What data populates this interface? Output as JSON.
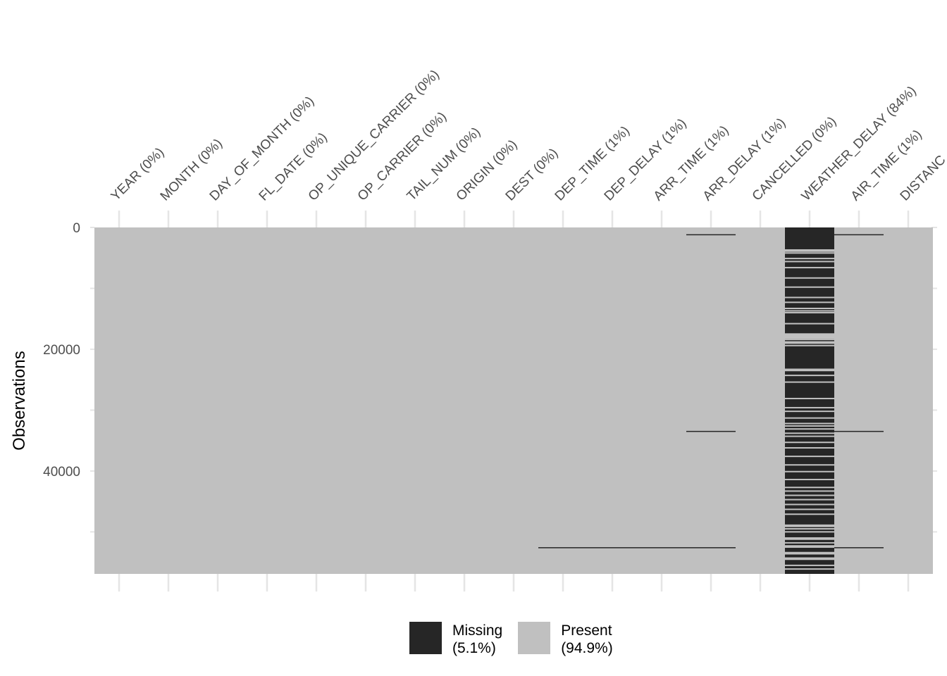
{
  "chart_data": {
    "type": "heatmap",
    "subtype": "missingness-map (vis_miss)",
    "title": "",
    "xlabel": "",
    "ylabel": "Observations",
    "y_ticks": [
      0,
      20000,
      40000
    ],
    "y_minor_ticks": [
      10000,
      30000,
      50000
    ],
    "ylim": [
      0,
      56900
    ],
    "y_reversed": true,
    "grid": true,
    "legend_position": "bottom",
    "colors": {
      "missing": "#262626",
      "present": "#c0c0c0",
      "grid": "#e5e5e5"
    },
    "columns": [
      {
        "name": "YEAR",
        "pct_missing": 0,
        "label": "YEAR (0%)"
      },
      {
        "name": "MONTH",
        "pct_missing": 0,
        "label": "MONTH (0%)"
      },
      {
        "name": "DAY_OF_MONTH",
        "pct_missing": 0,
        "label": "DAY_OF_MONTH (0%)"
      },
      {
        "name": "FL_DATE",
        "pct_missing": 0,
        "label": "FL_DATE (0%)"
      },
      {
        "name": "OP_UNIQUE_CARRIER",
        "pct_missing": 0,
        "label": "OP_UNIQUE_CARRIER (0%)"
      },
      {
        "name": "OP_CARRIER",
        "pct_missing": 0,
        "label": "OP_CARRIER (0%)"
      },
      {
        "name": "TAIL_NUM",
        "pct_missing": 0,
        "label": "TAIL_NUM (0%)"
      },
      {
        "name": "ORIGIN",
        "pct_missing": 0,
        "label": "ORIGIN (0%)"
      },
      {
        "name": "DEST",
        "pct_missing": 0,
        "label": "DEST (0%)"
      },
      {
        "name": "DEP_TIME",
        "pct_missing": 1,
        "label": "DEP_TIME (1%)"
      },
      {
        "name": "DEP_DELAY",
        "pct_missing": 1,
        "label": "DEP_DELAY (1%)"
      },
      {
        "name": "ARR_TIME",
        "pct_missing": 1,
        "label": "ARR_TIME (1%)"
      },
      {
        "name": "ARR_DELAY",
        "pct_missing": 1,
        "label": "ARR_DELAY (1%)"
      },
      {
        "name": "CANCELLED",
        "pct_missing": 0,
        "label": "CANCELLED (0%)"
      },
      {
        "name": "WEATHER_DELAY",
        "pct_missing": 84,
        "label": "WEATHER_DELAY (84%)"
      },
      {
        "name": "AIR_TIME",
        "pct_missing": 1,
        "label": "AIR_TIME (1%)"
      },
      {
        "name": "DISTANCE",
        "pct_missing": null,
        "label": "DISTANC"
      }
    ],
    "missing_row_bands": [
      {
        "row_approx": 1200,
        "columns": [
          "ARR_DELAY",
          "AIR_TIME"
        ]
      },
      {
        "row_approx": 33500,
        "columns": [
          "ARR_DELAY",
          "AIR_TIME"
        ]
      },
      {
        "row_approx": 52600,
        "columns": [
          "DEP_TIME",
          "DEP_DELAY",
          "ARR_TIME",
          "ARR_DELAY",
          "AIR_TIME"
        ]
      }
    ],
    "weather_delay_present_rows_approx": [
      3700,
      3900,
      4200,
      5100,
      5600,
      6600,
      8300,
      9800,
      11500,
      12300,
      13300,
      13700,
      14000,
      15800,
      17500,
      17900,
      18400,
      18800,
      19000,
      19400,
      23300,
      23500,
      24300,
      25400,
      28100,
      29600,
      30200,
      31300,
      32200,
      32600,
      33100,
      33800,
      34300,
      35300,
      36200,
      37600,
      39000,
      40100,
      41400,
      42700,
      43300,
      44000,
      44700,
      45500,
      46300,
      47100,
      48900,
      49100,
      49500,
      50000,
      51000,
      51200,
      51800,
      52300,
      52500,
      53400,
      53600,
      54300,
      54500,
      55500,
      56100
    ],
    "legend": [
      {
        "label": "Missing",
        "pct": "(5.1%)",
        "color": "#262626"
      },
      {
        "label": "Present",
        "pct": "(94.9%)",
        "color": "#c0c0c0"
      }
    ]
  },
  "legend": {
    "missing": {
      "label": "Missing",
      "pct": "(5.1%)"
    },
    "present": {
      "label": "Present",
      "pct": "(94.9%)"
    }
  },
  "axis": {
    "ylabel": "Observations",
    "ytick_0": "0",
    "ytick_20000": "20000",
    "ytick_40000": "40000"
  }
}
